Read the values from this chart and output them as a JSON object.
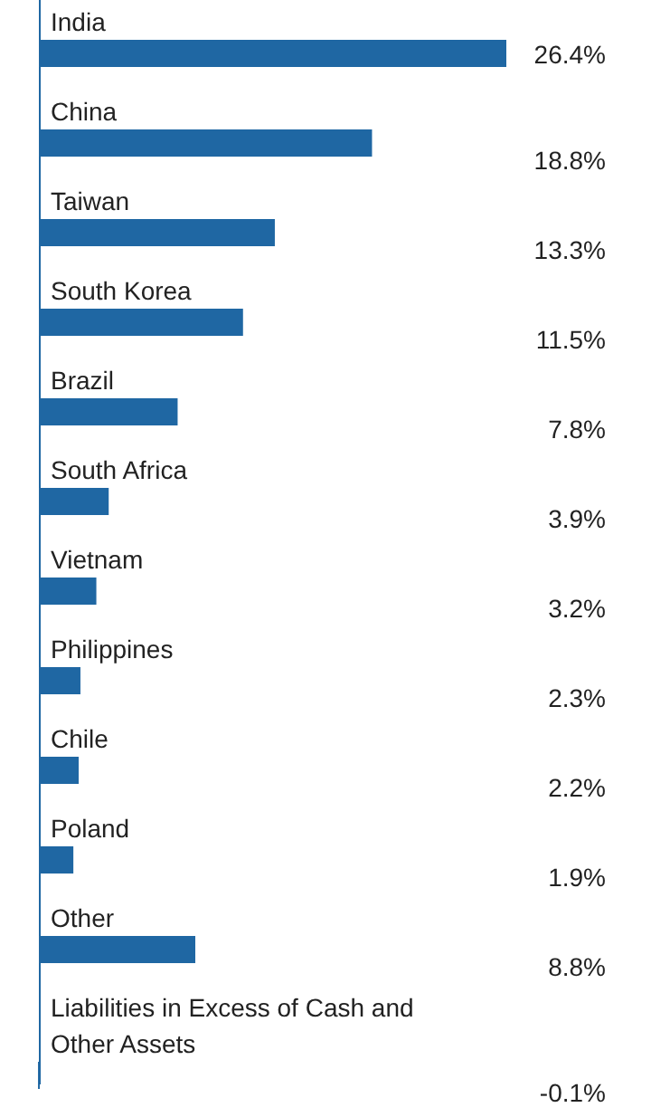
{
  "chart_data": {
    "type": "bar",
    "orientation": "horizontal",
    "categories": [
      "India",
      "China",
      "Taiwan",
      "South Korea",
      "Brazil",
      "South Africa",
      "Vietnam",
      "Philippines",
      "Chile",
      "Poland",
      "Other",
      "Liabilities in Excess of Cash and Other Assets"
    ],
    "values": [
      26.4,
      18.8,
      13.3,
      11.5,
      7.8,
      3.9,
      3.2,
      2.3,
      2.2,
      1.9,
      8.8,
      -0.1
    ],
    "value_labels": [
      "26.4%",
      "18.8%",
      "13.3%",
      "11.5%",
      "7.8%",
      "3.9%",
      "3.2%",
      "2.3%",
      "2.2%",
      "1.9%",
      "8.8%",
      "-0.1%"
    ],
    "color": "#1f67a3"
  }
}
